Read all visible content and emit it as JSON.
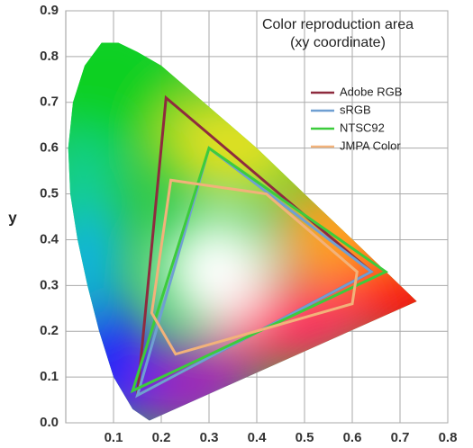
{
  "chart_data": {
    "type": "polygon",
    "title": "Color reproduction area",
    "subtitle": "(xy coordinate)",
    "y_label": "y",
    "xlim": [
      0,
      0.8
    ],
    "ylim": [
      0,
      0.9
    ],
    "xticks": [
      0.1,
      0.2,
      0.3,
      0.4,
      0.5,
      0.6,
      0.7,
      0.8
    ],
    "yticks": [
      {
        "value": 0,
        "label": "0.0"
      },
      0.1,
      0.2,
      0.3,
      0.4,
      0.5,
      0.6,
      0.7,
      0.8,
      0.9
    ],
    "grid": true,
    "legend": "upper right",
    "series": [
      {
        "name": "Adobe RGB",
        "color": "#8e2b3e",
        "x": [
          0.64,
          0.21,
          0.15
        ],
        "values": [
          0.33,
          0.71,
          0.06
        ]
      },
      {
        "name": "sRGB",
        "color": "#6f9fd2",
        "x": [
          0.64,
          0.3,
          0.15
        ],
        "values": [
          0.33,
          0.6,
          0.06
        ]
      },
      {
        "name": "NTSC92",
        "color": "#3ccc3c",
        "x": [
          0.67,
          0.3,
          0.14
        ],
        "values": [
          0.33,
          0.6,
          0.07
        ]
      },
      {
        "name": "JMPA Color",
        "color": "#f2b27a",
        "x": [
          0.22,
          0.42,
          0.61,
          0.6,
          0.23,
          0.18
        ],
        "values": [
          0.53,
          0.5,
          0.33,
          0.26,
          0.15,
          0.24
        ]
      }
    ]
  }
}
